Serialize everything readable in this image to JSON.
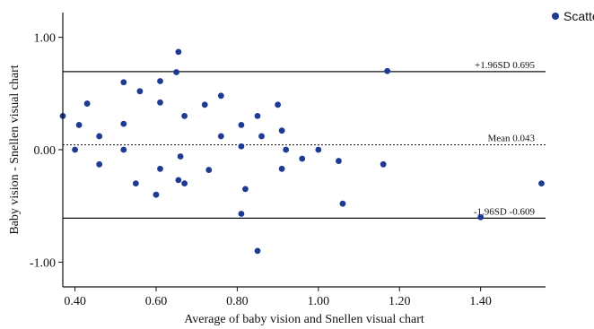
{
  "chart_data": {
    "type": "scatter",
    "title": "",
    "xlabel": "Average of baby vision and Snellen visual chart",
    "ylabel": "Baby vision - Snellen visual chart",
    "xlim": [
      0.37,
      1.56
    ],
    "ylim": [
      -1.22,
      1.22
    ],
    "x_ticks": [
      0.4,
      0.6,
      0.8,
      1.0,
      1.2,
      1.4
    ],
    "x_tick_labels": [
      "0.40",
      "0.60",
      "0.80",
      "1.00",
      "1.20",
      "1.40"
    ],
    "y_ticks": [
      -1.0,
      0.0,
      1.0
    ],
    "y_tick_labels": [
      "-1.00",
      "0.00",
      "1.00"
    ],
    "grid": false,
    "legend": {
      "position": "top-right",
      "entries": [
        "Scatter"
      ]
    },
    "marker_color": "#1f3a93",
    "series": [
      {
        "name": "Scatter",
        "points": [
          [
            0.655,
            0.87
          ],
          [
            0.65,
            0.69
          ],
          [
            0.52,
            0.6
          ],
          [
            0.61,
            0.61
          ],
          [
            0.37,
            0.3
          ],
          [
            0.41,
            0.22
          ],
          [
            0.43,
            0.41
          ],
          [
            0.46,
            0.12
          ],
          [
            0.52,
            0.23
          ],
          [
            0.56,
            0.52
          ],
          [
            0.61,
            0.42
          ],
          [
            0.67,
            0.3
          ],
          [
            0.72,
            0.4
          ],
          [
            0.76,
            0.48
          ],
          [
            0.76,
            0.12
          ],
          [
            0.81,
            0.22
          ],
          [
            0.85,
            0.3
          ],
          [
            0.86,
            0.12
          ],
          [
            0.9,
            0.4
          ],
          [
            0.91,
            0.17
          ],
          [
            0.4,
            0.0
          ],
          [
            0.52,
            0.0
          ],
          [
            0.81,
            0.03
          ],
          [
            0.92,
            0.0
          ],
          [
            1.0,
            0.0
          ],
          [
            1.17,
            0.7
          ],
          [
            0.46,
            -0.13
          ],
          [
            0.55,
            -0.3
          ],
          [
            0.6,
            -0.4
          ],
          [
            0.61,
            -0.17
          ],
          [
            0.66,
            -0.06
          ],
          [
            0.655,
            -0.27
          ],
          [
            0.67,
            -0.3
          ],
          [
            0.73,
            -0.18
          ],
          [
            0.82,
            -0.35
          ],
          [
            0.81,
            -0.57
          ],
          [
            0.91,
            -0.17
          ],
          [
            0.96,
            -0.08
          ],
          [
            1.05,
            -0.1
          ],
          [
            1.06,
            -0.48
          ],
          [
            1.16,
            -0.13
          ],
          [
            1.4,
            -0.6
          ],
          [
            1.55,
            -0.3
          ],
          [
            0.85,
            -0.9
          ]
        ]
      }
    ],
    "reference_lines": [
      {
        "y": 0.695,
        "label": "+1.96SD 0.695",
        "style": "solid"
      },
      {
        "y": 0.043,
        "label": "Mean 0.043",
        "style": "dotted"
      },
      {
        "y": -0.609,
        "label": "-1.96SD -0.609",
        "style": "solid"
      }
    ]
  }
}
